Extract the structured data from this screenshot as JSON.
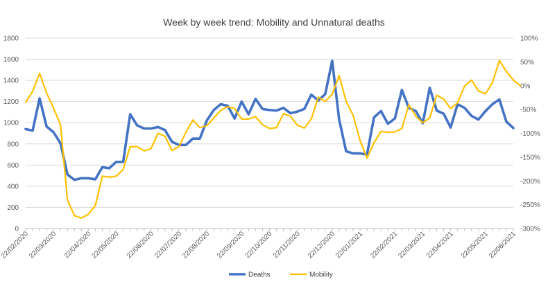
{
  "chart_data": {
    "type": "line",
    "title": "Week by week trend: Mobility and Unnatural deaths",
    "grid": true,
    "legend_position": "bottom",
    "y_left": {
      "min": 0,
      "max": 1800,
      "step": 200,
      "tick_labels": [
        "0",
        "200",
        "400",
        "600",
        "800",
        "1000",
        "1200",
        "1400",
        "1600",
        "1800"
      ]
    },
    "y_right": {
      "min": -300,
      "max": 100,
      "step": 50,
      "tick_labels": [
        "-300%",
        "-250%",
        "-200%",
        "-150%",
        "-100%",
        "-50%",
        "0%",
        "50%",
        "100%"
      ]
    },
    "x_tick_labels": [
      "22/02/2020",
      "22/03/2020",
      "22/04/2020",
      "22/05/2020",
      "22/06/2020",
      "22/07/2020",
      "22/08/2020",
      "22/09/2020",
      "22/10/2020",
      "22/11/2020",
      "22/12/2020",
      "22/01/2021",
      "22/02/2021",
      "22/03/2021",
      "22/04/2021",
      "22/05/2021",
      "22/06/2021"
    ],
    "series": [
      {
        "name": "Deaths",
        "axis": "left",
        "color": "#4472C4",
        "values": [
          940,
          925,
          1230,
          965,
          910,
          805,
          510,
          460,
          475,
          475,
          465,
          580,
          570,
          630,
          630,
          1080,
          975,
          945,
          945,
          960,
          930,
          820,
          790,
          790,
          850,
          850,
          1020,
          1120,
          1175,
          1160,
          1040,
          1200,
          1080,
          1225,
          1130,
          1120,
          1115,
          1140,
          1090,
          1105,
          1130,
          1265,
          1210,
          1270,
          1585,
          1030,
          730,
          710,
          710,
          700,
          1050,
          1110,
          990,
          1040,
          1310,
          1140,
          1110,
          995,
          1330,
          1115,
          1085,
          955,
          1175,
          1140,
          1065,
          1030,
          1110,
          1175,
          1220,
          1010,
          950
        ]
      },
      {
        "name": "Mobility",
        "axis": "right",
        "color": "#FFC000",
        "values": [
          -35,
          -12,
          26,
          -15,
          -47,
          -82,
          -240,
          -273,
          -278,
          -270,
          -252,
          -190,
          -192,
          -190,
          -176,
          -128,
          -128,
          -137,
          -132,
          -100,
          -106,
          -136,
          -128,
          -98,
          -72,
          -88,
          -84,
          -68,
          -52,
          -44,
          -48,
          -70,
          -70,
          -65,
          -82,
          -90,
          -88,
          -59,
          -64,
          -83,
          -89,
          -70,
          -24,
          -33,
          -18,
          21,
          -33,
          -62,
          -115,
          -152,
          -120,
          -96,
          -98,
          -97,
          -90,
          -40,
          -64,
          -78,
          -68,
          -20,
          -28,
          -48,
          -36,
          -1,
          12,
          -11,
          -17,
          6,
          53,
          30,
          12,
          0
        ]
      }
    ]
  }
}
